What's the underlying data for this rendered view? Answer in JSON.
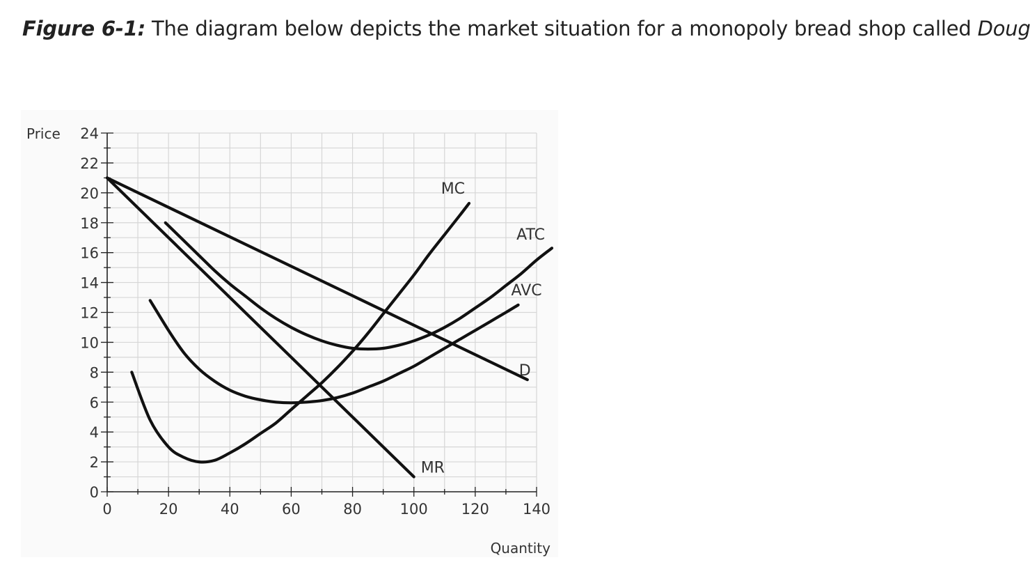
{
  "caption": {
    "figure_label": "Figure 6-1:",
    "text_before": " The diagram below depicts the market situation for a monopoly bread shop called ",
    "shop_name": "Dough!",
    "text_after": "."
  },
  "chart_data": {
    "type": "line",
    "xlabel": "Quantity",
    "ylabel": "Price",
    "xlim": [
      0,
      140
    ],
    "ylim": [
      0,
      24
    ],
    "x_ticks": [
      0,
      20,
      40,
      60,
      80,
      100,
      120,
      140
    ],
    "y_ticks": [
      0,
      2,
      4,
      6,
      8,
      10,
      12,
      14,
      16,
      18,
      20,
      22,
      24
    ],
    "grid": true,
    "series": [
      {
        "name": "MC",
        "x": [
          8,
          14,
          20,
          25,
          30,
          35,
          40,
          45,
          50,
          55,
          60,
          65,
          70,
          75,
          80,
          85,
          90,
          95,
          100,
          105,
          110,
          115,
          118
        ],
        "y": [
          8.0,
          4.8,
          3.0,
          2.3,
          2.0,
          2.1,
          2.6,
          3.2,
          3.9,
          4.6,
          5.5,
          6.4,
          7.3,
          8.3,
          9.4,
          10.6,
          11.9,
          13.2,
          14.5,
          15.9,
          17.2,
          18.5,
          19.3
        ]
      },
      {
        "name": "AVC",
        "x": [
          14,
          20,
          25,
          30,
          35,
          40,
          45,
          50,
          55,
          60,
          65,
          70,
          75,
          80,
          85,
          90,
          95,
          100,
          105,
          110,
          115,
          120,
          125,
          130,
          134
        ],
        "y": [
          12.8,
          10.8,
          9.3,
          8.2,
          7.4,
          6.8,
          6.4,
          6.15,
          6.0,
          5.95,
          6.0,
          6.1,
          6.3,
          6.6,
          7.0,
          7.4,
          7.9,
          8.4,
          9.0,
          9.6,
          10.2,
          10.8,
          11.4,
          12.0,
          12.5
        ]
      },
      {
        "name": "ATC",
        "x": [
          19,
          25,
          30,
          35,
          40,
          45,
          50,
          55,
          60,
          65,
          70,
          75,
          80,
          85,
          90,
          95,
          100,
          105,
          110,
          115,
          120,
          125,
          130,
          135,
          140,
          145
        ],
        "y": [
          18.0,
          16.8,
          15.8,
          14.8,
          13.9,
          13.1,
          12.3,
          11.6,
          11.0,
          10.5,
          10.1,
          9.8,
          9.6,
          9.55,
          9.6,
          9.8,
          10.1,
          10.5,
          11.0,
          11.6,
          12.3,
          13.0,
          13.8,
          14.6,
          15.5,
          16.3
        ]
      },
      {
        "name": "D",
        "x": [
          0,
          137
        ],
        "y": [
          21,
          7.5
        ]
      },
      {
        "name": "MR",
        "x": [
          0,
          100
        ],
        "y": [
          21,
          1
        ]
      }
    ]
  }
}
